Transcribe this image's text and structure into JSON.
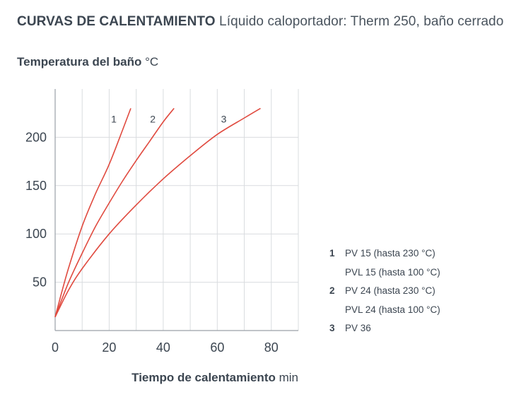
{
  "header": {
    "title": "CURVAS DE CALENTAMIENTO",
    "subtitle": "Líquido caloportador: Therm 250, baño cerrado"
  },
  "legend": [
    {
      "num": "1",
      "text": "PV 15 (hasta 230 °C)"
    },
    {
      "num": "",
      "text": "PVL 15 (hasta 100 °C)"
    },
    {
      "num": "2",
      "text": "PV 24 (hasta 230 °C)"
    },
    {
      "num": "",
      "text": "PVL 24 (hasta 100 °C)"
    },
    {
      "num": "3",
      "text": "PV 36"
    }
  ],
  "colors": {
    "line": "#e04a3f",
    "grid": "#d9dcdf",
    "axis": "#9aa1a8",
    "text": "#3c4651"
  },
  "chart_data": {
    "type": "line",
    "ylabel": "Temperatura del baño",
    "yunit": "°C",
    "xlabel": "Tiempo de calentamiento",
    "xunit": "min",
    "xlim": [
      0,
      90
    ],
    "ylim": [
      0,
      250
    ],
    "xticks": [
      0,
      20,
      40,
      60,
      80
    ],
    "yticks": [
      50,
      100,
      150,
      200
    ],
    "xgrid": [
      0,
      10,
      20,
      30,
      40,
      50,
      60,
      70,
      80,
      90
    ],
    "ygrid": [
      50,
      100,
      150,
      200
    ],
    "grid": true,
    "series": [
      {
        "name": "1",
        "x": [
          0,
          2,
          5,
          10,
          15,
          20,
          25,
          28
        ],
        "y": [
          14,
          35,
          65,
          108,
          142,
          172,
          208,
          230
        ]
      },
      {
        "name": "2",
        "x": [
          0,
          5,
          10,
          15,
          20,
          25,
          30,
          35,
          40,
          44
        ],
        "y": [
          14,
          50,
          80,
          108,
          132,
          155,
          176,
          196,
          216,
          230
        ]
      },
      {
        "name": "3",
        "x": [
          0,
          5,
          10,
          20,
          30,
          40,
          50,
          60,
          70,
          76
        ],
        "y": [
          14,
          42,
          64,
          100,
          130,
          157,
          181,
          203,
          220,
          230
        ]
      }
    ]
  }
}
